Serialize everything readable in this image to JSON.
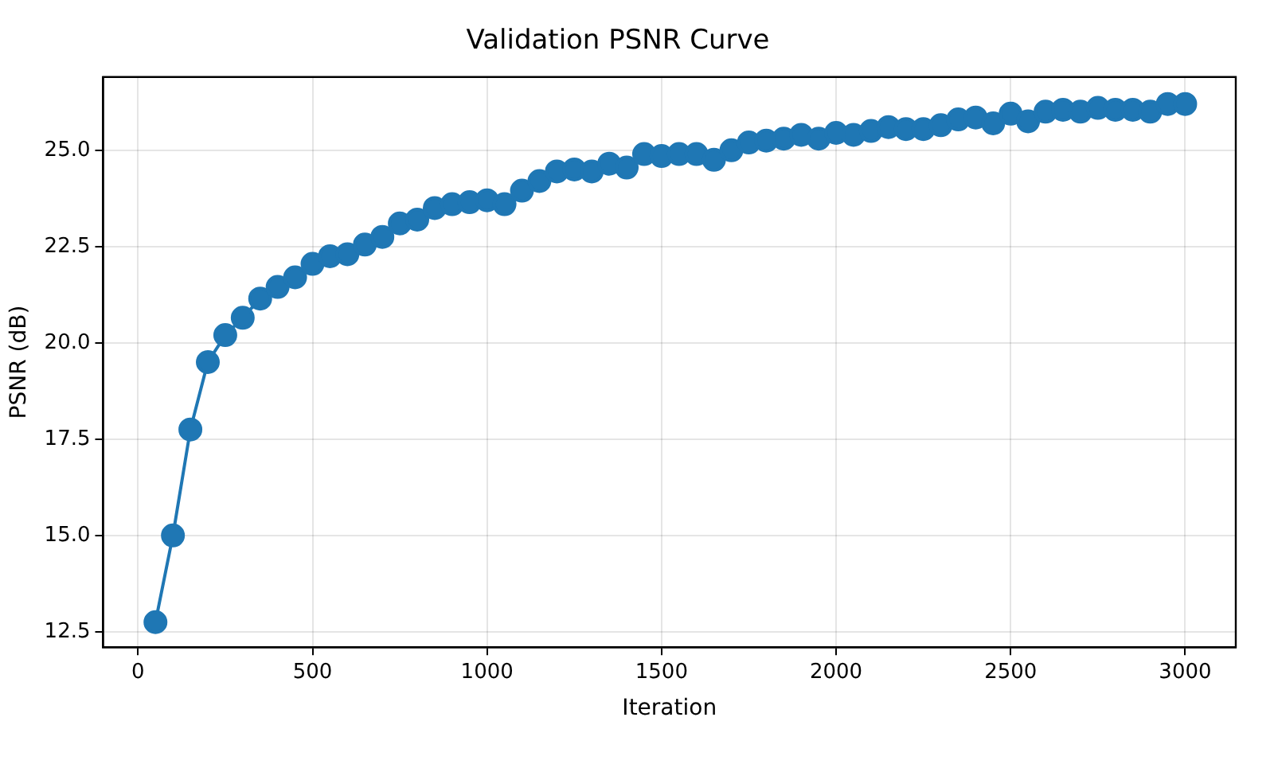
{
  "chart_data": {
    "type": "line",
    "title": "Validation PSNR Curve",
    "xlabel": "Iteration",
    "ylabel": "PSNR (dB)",
    "x": [
      50,
      100,
      150,
      200,
      250,
      300,
      350,
      400,
      450,
      500,
      550,
      600,
      650,
      700,
      750,
      800,
      850,
      900,
      950,
      1000,
      1050,
      1100,
      1150,
      1200,
      1250,
      1300,
      1350,
      1400,
      1450,
      1500,
      1550,
      1600,
      1650,
      1700,
      1750,
      1800,
      1850,
      1900,
      1950,
      2000,
      2050,
      2100,
      2150,
      2200,
      2250,
      2300,
      2350,
      2400,
      2450,
      2500,
      2550,
      2600,
      2650,
      2700,
      2750,
      2800,
      2850,
      2900,
      2950,
      3000
    ],
    "series": [
      {
        "color": "#1f77b4",
        "values": [
          12.75,
          15.0,
          17.75,
          19.5,
          20.2,
          20.65,
          21.15,
          21.45,
          21.7,
          22.05,
          22.25,
          22.3,
          22.55,
          22.75,
          23.1,
          23.2,
          23.5,
          23.6,
          23.65,
          23.7,
          23.6,
          23.95,
          24.2,
          24.45,
          24.5,
          24.45,
          24.65,
          24.55,
          24.9,
          24.85,
          24.9,
          24.9,
          24.75,
          25.0,
          25.2,
          25.25,
          25.3,
          25.4,
          25.3,
          25.45,
          25.4,
          25.5,
          25.6,
          25.55,
          25.55,
          25.65,
          25.8,
          25.85,
          25.7,
          25.95,
          25.75,
          26.0,
          26.05,
          26.0,
          26.1,
          26.05,
          26.05,
          26.0,
          26.2,
          26.2
        ]
      }
    ],
    "xlim": [
      -100,
      3145
    ],
    "xticks": [
      0,
      500,
      1000,
      1500,
      2000,
      2500,
      3000
    ],
    "ylim": [
      12.1,
      26.9
    ],
    "yticks": [
      {
        "value": 12.5,
        "label": "12.5"
      },
      {
        "value": 15,
        "label": "15.0"
      },
      {
        "value": 17.5,
        "label": "17.5"
      },
      {
        "value": 20,
        "label": "20.0"
      },
      {
        "value": 22.5,
        "label": "22.5"
      },
      {
        "value": 25,
        "label": "25.0"
      }
    ],
    "grid": true,
    "marker": "circle",
    "line_style": "solid",
    "legend": false
  }
}
